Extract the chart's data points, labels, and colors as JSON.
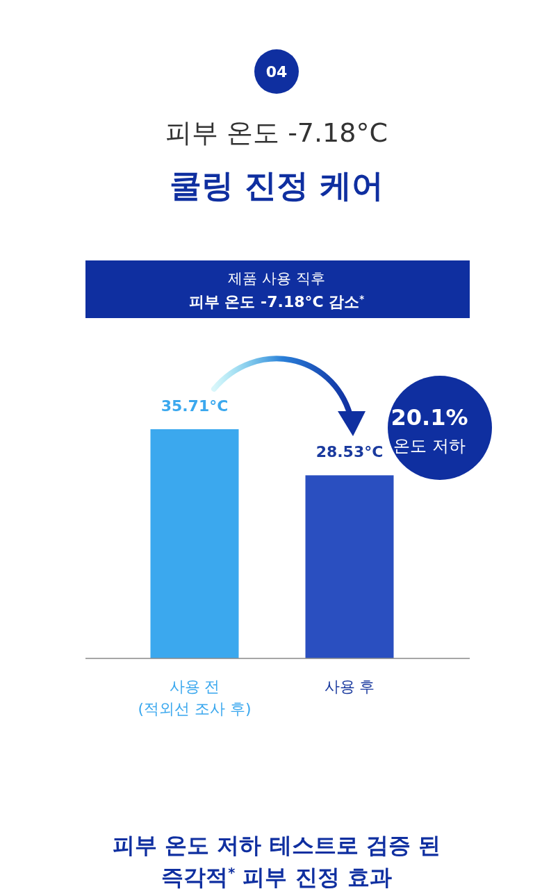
{
  "chart_data": {
    "type": "bar",
    "title": "피부 온도 -7.18°C",
    "subtitle": "쿨링 진정 케어",
    "categories": [
      "사용 전\n(적외선 조사 후)",
      "사용 후"
    ],
    "values": [
      35.71,
      28.53
    ],
    "colors": [
      "#3ba8ee",
      "#2a4fc0"
    ],
    "value_labels": [
      "35.71°C",
      "28.53°C"
    ],
    "annotations": [
      "04",
      "제품 사용 직후",
      "피부 온도 -7.18°C 감소$^{*}$",
      "20.1%",
      "온도 저하",
      "피부 온도 저하 테스트로 검증 된",
      "즉각적$^{*}$ 피부 진정 효과"
    ]
  }
}
